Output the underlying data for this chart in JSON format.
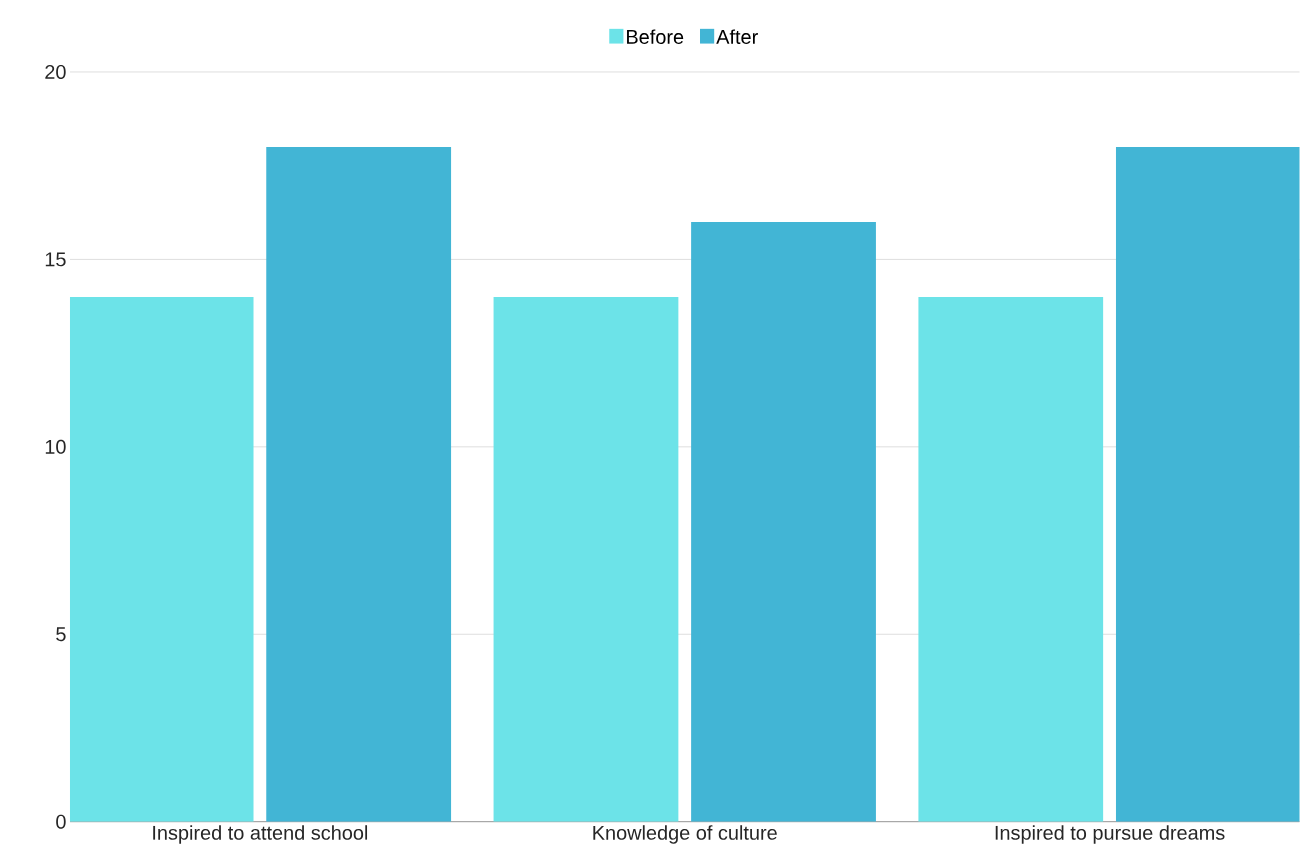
{
  "chart_data": {
    "type": "bar",
    "categories": [
      "Inspired to attend school",
      "Knowledge of culture",
      "Inspired to pursue dreams"
    ],
    "series": [
      {
        "name": "Before",
        "color": "#6ce3e8",
        "values": [
          14,
          14,
          14
        ]
      },
      {
        "name": "After",
        "color": "#42b5d5",
        "values": [
          18,
          16,
          18
        ]
      }
    ],
    "ylim": [
      0,
      20
    ],
    "yticks": [
      0,
      5,
      10,
      15,
      20
    ],
    "grid": "y",
    "legend": "top"
  }
}
